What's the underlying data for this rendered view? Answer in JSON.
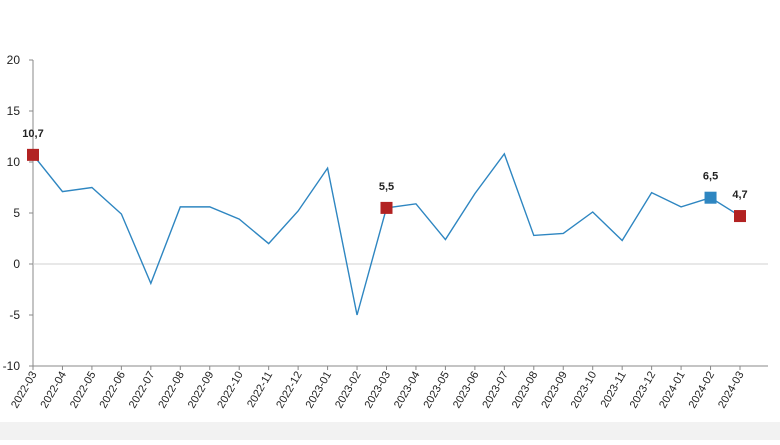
{
  "chart_data": {
    "type": "line",
    "title": "",
    "xlabel": "",
    "ylabel": "",
    "ylim": [
      -10,
      20
    ],
    "yticks": [
      -10,
      -5,
      0,
      5,
      10,
      15,
      20
    ],
    "grid": false,
    "categories": [
      "2022-03",
      "2022-04",
      "2022-05",
      "2022-06",
      "2022-07",
      "2022-08",
      "2022-09",
      "2022-10",
      "2022-11",
      "2022-12",
      "2023-01",
      "2023-02",
      "2023-03",
      "2023-04",
      "2023-05",
      "2023-06",
      "2023-07",
      "2023-08",
      "2023-09",
      "2023-10",
      "2023-11",
      "2023-12",
      "2024-01",
      "2024-02",
      "2024-03"
    ],
    "series": [
      {
        "values": [
          10.7,
          7.1,
          7.5,
          4.9,
          -1.9,
          5.6,
          5.6,
          4.4,
          2.0,
          5.2,
          9.4,
          -5.0,
          5.5,
          5.9,
          2.4,
          6.9,
          10.8,
          2.8,
          3.0,
          5.1,
          2.3,
          7.0,
          5.6,
          6.5,
          4.7
        ],
        "color": "#2E86C1"
      }
    ],
    "highlights": [
      {
        "category": "2022-03",
        "value": 10.7,
        "label": "10,7",
        "color": "#B22222"
      },
      {
        "category": "2023-03",
        "value": 5.5,
        "label": "5,5",
        "color": "#B22222"
      },
      {
        "category": "2024-02",
        "value": 6.5,
        "label": "6,5",
        "color": "#2E86C1"
      },
      {
        "category": "2024-03",
        "value": 4.7,
        "label": "4,7",
        "color": "#B22222"
      }
    ],
    "colors": {
      "axis": "#888888",
      "zero_line": "#D0D0D0",
      "footer_band": "#F2F2F2"
    }
  }
}
